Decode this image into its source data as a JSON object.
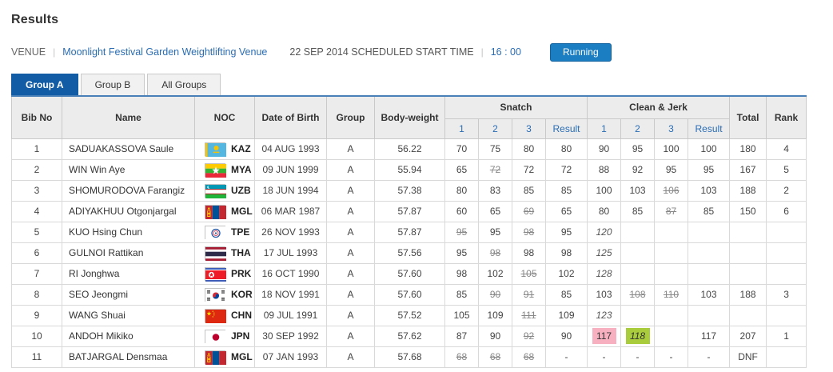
{
  "page": {
    "title": "Results"
  },
  "info": {
    "venue_label": "VENUE",
    "separator": "|",
    "venue_name": "Moonlight Festival Garden Weightlifting Venue",
    "date_schedule": "22 SEP 2014 SCHEDULED START TIME",
    "start_time": "16 : 00",
    "status": "Running"
  },
  "tabs": [
    {
      "label": "Group A",
      "active": true
    },
    {
      "label": "Group B",
      "active": false
    },
    {
      "label": "All Groups",
      "active": false
    }
  ],
  "colors": {
    "accent_tab": "#125ca6",
    "link": "#2a6db5",
    "status_bg": "#1b7ec2",
    "table_top_border": "#4a80b8",
    "highlight_pink": "#f7b0c0",
    "highlight_green": "#a9cc3d"
  },
  "icons": {
    "flags": [
      "flag-kaz-icon",
      "flag-mya-icon",
      "flag-uzb-icon",
      "flag-mgl-icon",
      "flag-tpe-icon",
      "flag-tha-icon",
      "flag-prk-icon",
      "flag-kor-icon",
      "flag-chn-icon",
      "flag-jpn-icon"
    ]
  },
  "table": {
    "headers": {
      "bib": "Bib No",
      "name": "Name",
      "noc": "NOC",
      "dob": "Date of Birth",
      "group": "Group",
      "bw": "Body-weight",
      "snatch": "Snatch",
      "cj": "Clean & Jerk",
      "a1": "1",
      "a2": "2",
      "a3": "3",
      "result": "Result",
      "total": "Total",
      "rank": "Rank"
    },
    "rows": [
      {
        "bib": "1",
        "name": "SADUAKASSOVA Saule",
        "noc": "KAZ",
        "dob": "04 AUG 1993",
        "group": "A",
        "bw": "56.22",
        "snatch": [
          {
            "v": "70"
          },
          {
            "v": "75"
          },
          {
            "v": "80"
          }
        ],
        "snatch_result": "80",
        "cj": [
          {
            "v": "90"
          },
          {
            "v": "95"
          },
          {
            "v": "100"
          }
        ],
        "cj_result": "100",
        "total": "180",
        "rank": "4"
      },
      {
        "bib": "2",
        "name": "WIN Win Aye",
        "noc": "MYA",
        "dob": "09 JUN 1999",
        "group": "A",
        "bw": "55.94",
        "snatch": [
          {
            "v": "65"
          },
          {
            "v": "72",
            "strike": true
          },
          {
            "v": "72"
          }
        ],
        "snatch_result": "72",
        "cj": [
          {
            "v": "88"
          },
          {
            "v": "92"
          },
          {
            "v": "95"
          }
        ],
        "cj_result": "95",
        "total": "167",
        "rank": "5"
      },
      {
        "bib": "3",
        "name": "SHOMURODOVA Farangiz",
        "noc": "UZB",
        "dob": "18 JUN 1994",
        "group": "A",
        "bw": "57.38",
        "snatch": [
          {
            "v": "80"
          },
          {
            "v": "83"
          },
          {
            "v": "85"
          }
        ],
        "snatch_result": "85",
        "cj": [
          {
            "v": "100"
          },
          {
            "v": "103"
          },
          {
            "v": "106",
            "strike": true
          }
        ],
        "cj_result": "103",
        "total": "188",
        "rank": "2"
      },
      {
        "bib": "4",
        "name": "ADIYAKHUU Otgonjargal",
        "noc": "MGL",
        "dob": "06 MAR 1987",
        "group": "A",
        "bw": "57.87",
        "snatch": [
          {
            "v": "60"
          },
          {
            "v": "65"
          },
          {
            "v": "69",
            "strike": true
          }
        ],
        "snatch_result": "65",
        "cj": [
          {
            "v": "80"
          },
          {
            "v": "85"
          },
          {
            "v": "87",
            "strike": true
          }
        ],
        "cj_result": "85",
        "total": "150",
        "rank": "6"
      },
      {
        "bib": "5",
        "name": "KUO Hsing Chun",
        "noc": "TPE",
        "dob": "26 NOV 1993",
        "group": "A",
        "bw": "57.87",
        "snatch": [
          {
            "v": "95",
            "strike": true
          },
          {
            "v": "95"
          },
          {
            "v": "98",
            "strike": true
          }
        ],
        "snatch_result": "95",
        "cj": [
          {
            "v": "120",
            "italic": true
          },
          {
            "v": ""
          },
          {
            "v": ""
          }
        ],
        "cj_result": "",
        "total": "",
        "rank": ""
      },
      {
        "bib": "6",
        "name": "GULNOI Rattikan",
        "noc": "THA",
        "dob": "17 JUL 1993",
        "group": "A",
        "bw": "57.56",
        "snatch": [
          {
            "v": "95"
          },
          {
            "v": "98",
            "strike": true
          },
          {
            "v": "98"
          }
        ],
        "snatch_result": "98",
        "cj": [
          {
            "v": "125",
            "italic": true
          },
          {
            "v": ""
          },
          {
            "v": ""
          }
        ],
        "cj_result": "",
        "total": "",
        "rank": ""
      },
      {
        "bib": "7",
        "name": "RI Jonghwa",
        "noc": "PRK",
        "dob": "16 OCT 1990",
        "group": "A",
        "bw": "57.60",
        "snatch": [
          {
            "v": "98"
          },
          {
            "v": "102"
          },
          {
            "v": "105",
            "strike": true
          }
        ],
        "snatch_result": "102",
        "cj": [
          {
            "v": "128",
            "italic": true
          },
          {
            "v": ""
          },
          {
            "v": ""
          }
        ],
        "cj_result": "",
        "total": "",
        "rank": ""
      },
      {
        "bib": "8",
        "name": "SEO Jeongmi",
        "noc": "KOR",
        "dob": "18 NOV 1991",
        "group": "A",
        "bw": "57.60",
        "snatch": [
          {
            "v": "85"
          },
          {
            "v": "90",
            "strike": true
          },
          {
            "v": "91",
            "strike": true
          }
        ],
        "snatch_result": "85",
        "cj": [
          {
            "v": "103"
          },
          {
            "v": "108",
            "strike": true
          },
          {
            "v": "110",
            "strike": true
          }
        ],
        "cj_result": "103",
        "total": "188",
        "rank": "3"
      },
      {
        "bib": "9",
        "name": "WANG Shuai",
        "noc": "CHN",
        "dob": "09 JUL 1991",
        "group": "A",
        "bw": "57.52",
        "snatch": [
          {
            "v": "105"
          },
          {
            "v": "109"
          },
          {
            "v": "111",
            "strike": true
          }
        ],
        "snatch_result": "109",
        "cj": [
          {
            "v": "123",
            "italic": true
          },
          {
            "v": ""
          },
          {
            "v": ""
          }
        ],
        "cj_result": "",
        "total": "",
        "rank": ""
      },
      {
        "bib": "10",
        "name": "ANDOH Mikiko",
        "noc": "JPN",
        "dob": "30 SEP 1992",
        "group": "A",
        "bw": "57.62",
        "snatch": [
          {
            "v": "87"
          },
          {
            "v": "90"
          },
          {
            "v": "92",
            "strike": true
          }
        ],
        "snatch_result": "90",
        "cj": [
          {
            "v": "117",
            "hl": "pink"
          },
          {
            "v": "118",
            "hl": "green",
            "italic": true
          },
          {
            "v": ""
          }
        ],
        "cj_result": "117",
        "total": "207",
        "rank": "1"
      },
      {
        "bib": "11",
        "name": "BATJARGAL Densmaa",
        "noc": "MGL",
        "dob": "07 JAN 1993",
        "group": "A",
        "bw": "57.68",
        "snatch": [
          {
            "v": "68",
            "strike": true
          },
          {
            "v": "68",
            "strike": true
          },
          {
            "v": "68",
            "strike": true
          }
        ],
        "snatch_result": "-",
        "cj": [
          {
            "v": "-"
          },
          {
            "v": "-"
          },
          {
            "v": "-"
          }
        ],
        "cj_result": "-",
        "total": "DNF",
        "rank": ""
      }
    ]
  }
}
